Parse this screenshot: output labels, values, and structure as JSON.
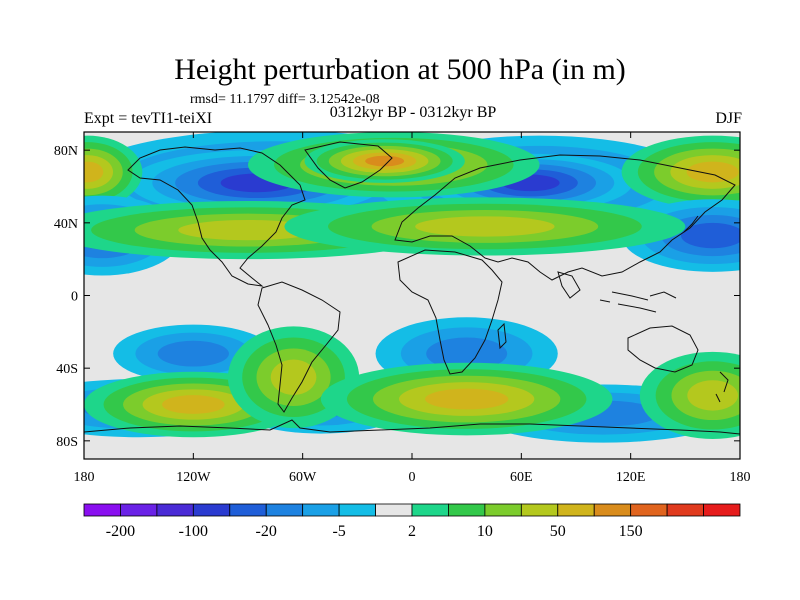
{
  "title": "Height perturbation at 500 hPa (in m)",
  "stats": "rmsd= 11.1797 diff= 3.12542e-08",
  "left_label": "Expt = tevTI1-teiXI",
  "center_label": "0312kyr BP - 0312kyr BP",
  "right_label": "DJF",
  "lat_ticks": [
    {
      "lat": 80,
      "label": "80N"
    },
    {
      "lat": 40,
      "label": "40N"
    },
    {
      "lat": 0,
      "label": "0"
    },
    {
      "lat": -40,
      "label": "40S"
    },
    {
      "lat": -80,
      "label": "80S"
    }
  ],
  "lon_ticks": [
    {
      "lon": -180,
      "label": "180"
    },
    {
      "lon": -120,
      "label": "120W"
    },
    {
      "lon": -60,
      "label": "60W"
    },
    {
      "lon": 0,
      "label": "0"
    },
    {
      "lon": 60,
      "label": "60E"
    },
    {
      "lon": 120,
      "label": "120E"
    },
    {
      "lon": 180,
      "label": "180"
    }
  ],
  "colorbar": {
    "colors": [
      "#8a0ff0",
      "#6a22e6",
      "#4a2bd6",
      "#2a3bd0",
      "#1f5ed8",
      "#1e82e0",
      "#1aa0e6",
      "#14bde6",
      "#e6e6e6",
      "#1ed68a",
      "#33c84a",
      "#7ccc2c",
      "#b4c81e",
      "#d0b41c",
      "#d98c1c",
      "#e0641e",
      "#e03a1e",
      "#e61c1c"
    ],
    "labels": [
      {
        "after_box": 1,
        "text": "-200"
      },
      {
        "after_box": 3,
        "text": "-100"
      },
      {
        "after_box": 5,
        "text": "-20"
      },
      {
        "after_box": 7,
        "text": "-5"
      },
      {
        "after_box": 9,
        "text": "2"
      },
      {
        "after_box": 11,
        "text": "10"
      },
      {
        "after_box": 13,
        "text": "50"
      },
      {
        "after_box": 15,
        "text": "150"
      }
    ]
  },
  "field": {
    "lon_range": [
      -180,
      180
    ],
    "lat_range": [
      -90,
      90
    ],
    "blobs": [
      {
        "lon": -75,
        "lat": 63,
        "rlon": 55,
        "rlat": 14,
        "level": 4
      },
      {
        "lon": -85,
        "lat": 62,
        "rlon": 35,
        "rlat": 9,
        "level": 3
      },
      {
        "lon": 70,
        "lat": 62,
        "rlon": 45,
        "rlat": 13,
        "level": 4
      },
      {
        "lon": 65,
        "lat": 62,
        "rlon": 28,
        "rlat": 8,
        "level": 3
      },
      {
        "lon": -10,
        "lat": 72,
        "rlon": 40,
        "rlat": 9,
        "level": 13
      },
      {
        "lon": -15,
        "lat": 74,
        "rlon": 22,
        "rlat": 6,
        "level": 14
      },
      {
        "lon": 165,
        "lat": 68,
        "rlon": 25,
        "rlat": 10,
        "level": 13
      },
      {
        "lon": -178,
        "lat": 68,
        "rlon": 15,
        "rlat": 10,
        "level": 13
      },
      {
        "lon": -170,
        "lat": 33,
        "rlon": 22,
        "rlat": 11,
        "level": 4
      },
      {
        "lon": 165,
        "lat": 33,
        "rlon": 25,
        "rlat": 10,
        "level": 4
      },
      {
        "lon": -90,
        "lat": 36,
        "rlon": 55,
        "rlat": 8,
        "level": 12
      },
      {
        "lon": 40,
        "lat": 38,
        "rlon": 55,
        "rlat": 8,
        "level": 12
      },
      {
        "lon": -120,
        "lat": -32,
        "rlon": 22,
        "rlat": 8,
        "level": 5
      },
      {
        "lon": 30,
        "lat": -32,
        "rlon": 25,
        "rlat": 10,
        "level": 5
      },
      {
        "lon": -150,
        "lat": -62,
        "rlon": 35,
        "rlat": 8,
        "level": 5
      },
      {
        "lon": 105,
        "lat": -65,
        "rlon": 35,
        "rlat": 8,
        "level": 5
      },
      {
        "lon": -50,
        "lat": -60,
        "rlon": 25,
        "rlat": 8,
        "level": 5
      },
      {
        "lon": -120,
        "lat": -60,
        "rlon": 30,
        "rlat": 9,
        "level": 13
      },
      {
        "lon": -65,
        "lat": -45,
        "rlon": 18,
        "rlat": 14,
        "level": 12
      },
      {
        "lon": 30,
        "lat": -57,
        "rlon": 40,
        "rlat": 10,
        "level": 13
      },
      {
        "lon": 165,
        "lat": -55,
        "rlon": 20,
        "rlat": 12,
        "level": 12
      }
    ]
  }
}
